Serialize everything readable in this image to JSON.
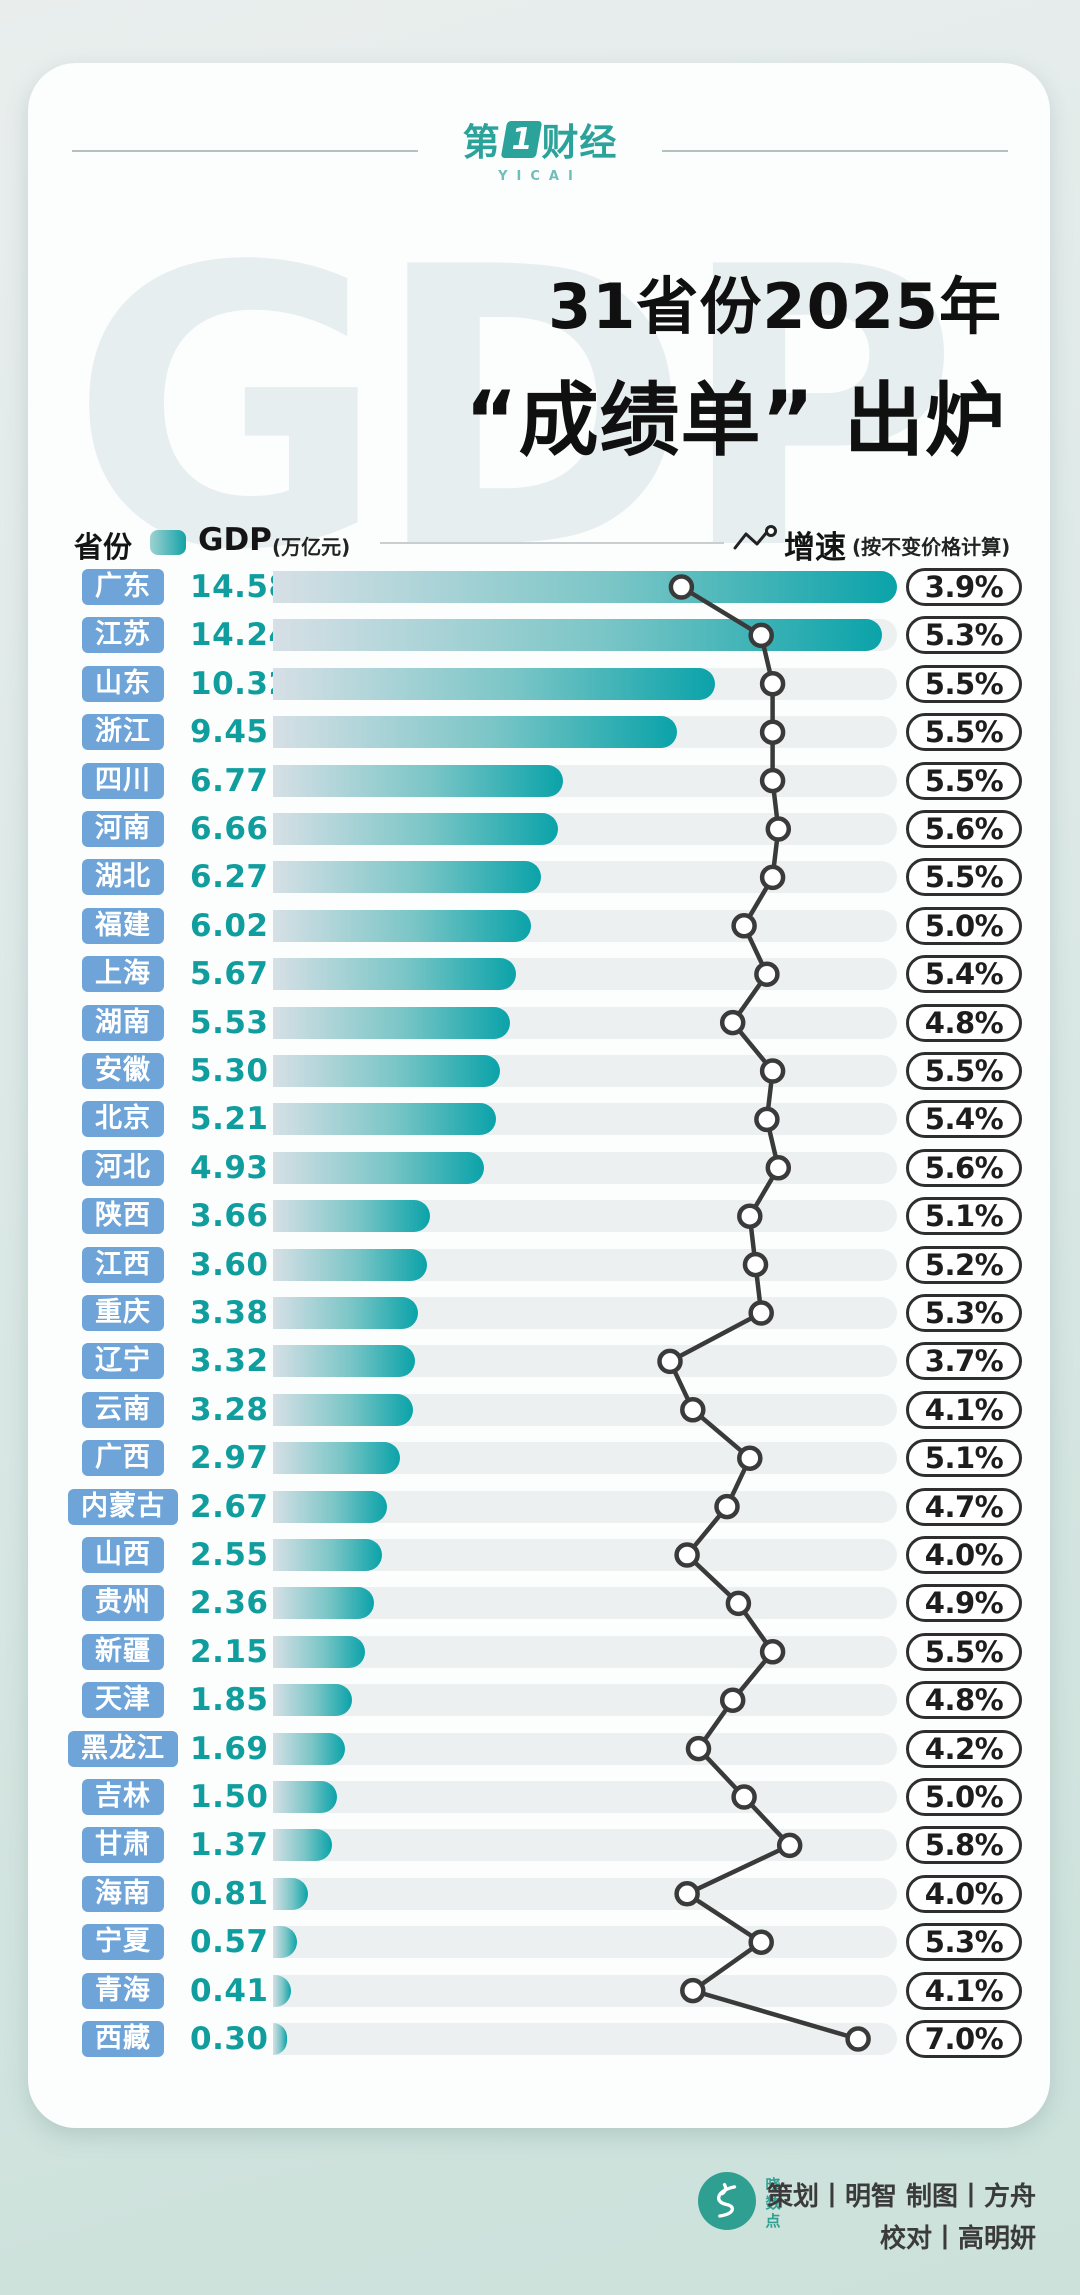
{
  "header": {
    "brand_pre": "第",
    "brand_one": "1",
    "brand_post": "财经",
    "brand_en": "YICAI"
  },
  "watermark": "GDP",
  "title": {
    "line1": "31省份2025年",
    "line2": "“成绩单” 出炉"
  },
  "legend": {
    "province_label": "省份",
    "gdp_label": "GDP",
    "gdp_unit": "(万亿元)",
    "growth_label": "增速",
    "growth_note": "(按不变价格计算)"
  },
  "colors": {
    "accent_teal": "#0aa3a9",
    "brand_teal": "#2ba39b",
    "chip_blue": "#6ea4d8",
    "value_teal": "#0f9d9e",
    "line_dark": "#3a3a3a",
    "track_grey": "#edf0f1"
  },
  "chart_data": {
    "type": "bar",
    "title": "31省份2025年“成绩单”出炉",
    "categories": [
      "广东",
      "江苏",
      "山东",
      "浙江",
      "四川",
      "河南",
      "湖北",
      "福建",
      "上海",
      "湖南",
      "安徽",
      "北京",
      "河北",
      "陕西",
      "江西",
      "重庆",
      "辽宁",
      "云南",
      "广西",
      "内蒙古",
      "山西",
      "贵州",
      "新疆",
      "天津",
      "黑龙江",
      "吉林",
      "甘肃",
      "海南",
      "宁夏",
      "青海",
      "西藏"
    ],
    "series": [
      {
        "name": "GDP(万亿元)",
        "type": "bar",
        "values": [
          14.58,
          14.24,
          10.32,
          9.45,
          6.77,
          6.66,
          6.27,
          6.02,
          5.67,
          5.53,
          5.3,
          5.21,
          4.93,
          3.66,
          3.6,
          3.38,
          3.32,
          3.28,
          2.97,
          2.67,
          2.55,
          2.36,
          2.15,
          1.85,
          1.69,
          1.5,
          1.37,
          0.81,
          0.57,
          0.41,
          0.3
        ]
      },
      {
        "name": "增速(按不变价格计算,%)",
        "type": "line",
        "values": [
          3.9,
          5.3,
          5.5,
          5.5,
          5.5,
          5.6,
          5.5,
          5.0,
          5.4,
          4.8,
          5.5,
          5.4,
          5.6,
          5.1,
          5.2,
          5.3,
          3.7,
          4.1,
          5.1,
          4.7,
          4.0,
          4.9,
          5.5,
          4.8,
          4.2,
          5.0,
          5.8,
          4.0,
          5.3,
          4.1,
          7.0
        ]
      }
    ],
    "bar_value_labels": [
      "14.58",
      "14.24",
      "10.32",
      "9.45",
      "6.77",
      "6.66",
      "6.27",
      "6.02",
      "5.67",
      "5.53",
      "5.30",
      "5.21",
      "4.93",
      "3.66",
      "3.60",
      "3.38",
      "3.32",
      "3.28",
      "2.97",
      "2.67",
      "2.55",
      "2.36",
      "2.15",
      "1.85",
      "1.69",
      "1.50",
      "1.37",
      "0.81",
      "0.57",
      "0.41",
      "0.30"
    ],
    "line_value_labels": [
      "3.9%",
      "5.3%",
      "5.5%",
      "5.5%",
      "5.5%",
      "5.6%",
      "5.5%",
      "5.0%",
      "5.4%",
      "4.8%",
      "5.5%",
      "5.4%",
      "5.6%",
      "5.1%",
      "5.2%",
      "5.3%",
      "3.7%",
      "4.1%",
      "5.1%",
      "4.7%",
      "4.0%",
      "4.9%",
      "5.5%",
      "4.8%",
      "4.2%",
      "5.0%",
      "5.8%",
      "4.0%",
      "5.3%",
      "4.1%",
      "7.0%"
    ],
    "bar_xlim": [
      0,
      14.58
    ],
    "growth_xlim": [
      3.7,
      7.0
    ],
    "legend_position": "top",
    "grid": false
  },
  "footer": {
    "logo_text": "晓数点",
    "credit_line1": "策划丨明智  制图丨方舟",
    "credit_line2": "校对丨高明妍"
  }
}
